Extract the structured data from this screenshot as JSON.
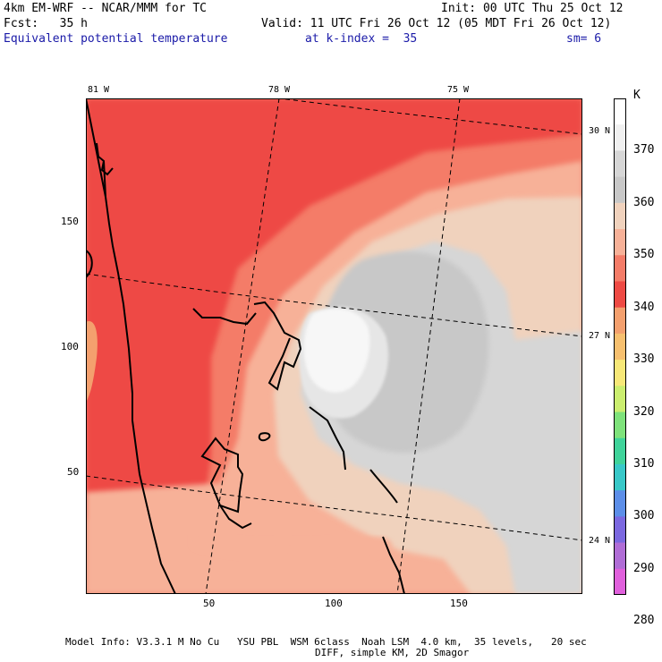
{
  "header": {
    "model": "4km EM-WRF -- NCAR/MMM for TC",
    "init": "Init: 00 UTC Thu 25 Oct 12",
    "fcst": "Fcst:   35 h",
    "valid": "Valid: 11 UTC Fri 26 Oct 12 (05 MDT Fri 26 Oct 12)",
    "field": "Equivalent potential temperature",
    "level": "at k-index =  35",
    "smooth": "sm= 6"
  },
  "axes": {
    "top_lon_labels": [
      "81 W",
      "78 W",
      "75 W"
    ],
    "right_lat_labels": [
      "30 N",
      "27 N",
      "24 N"
    ],
    "left_grid_labels": [
      "150",
      "100",
      "50"
    ],
    "bottom_grid_labels": [
      "50",
      "100",
      "150"
    ]
  },
  "colorbar": {
    "unit": "K",
    "levels": [
      "370",
      "360",
      "350",
      "340",
      "330",
      "320",
      "310",
      "300",
      "290",
      "280"
    ],
    "colors": [
      "#ffffff",
      "#f0f0f0",
      "#d6d6d6",
      "#c8c8c8",
      "#f0d2bd",
      "#f7b198",
      "#f47c68",
      "#ee4a44",
      "#f4a06e",
      "#f7c06f",
      "#f7e878",
      "#cbee6f",
      "#7ee27b",
      "#3fd39a",
      "#38c8c8",
      "#5c8ee8",
      "#7b68e0",
      "#b06dd6",
      "#e060dc"
    ]
  },
  "footer": {
    "line1": "Model Info: V3.3.1 M No Cu   YSU PBL  WSM 6class  Noah LSM  4.0 km,  35 levels,   20 sec",
    "line2": "DIFF, simple KM, 2D Smagor"
  },
  "palette": {
    "land_red": "#ee4a44",
    "red_mid": "#f47c68",
    "salmon": "#f7b198",
    "peach": "#f0d2bd",
    "gray_light": "#d6d6d6",
    "gray_mid": "#c8c8c8",
    "white_core": "#f5f5f5",
    "orange": "#f4a06e"
  }
}
